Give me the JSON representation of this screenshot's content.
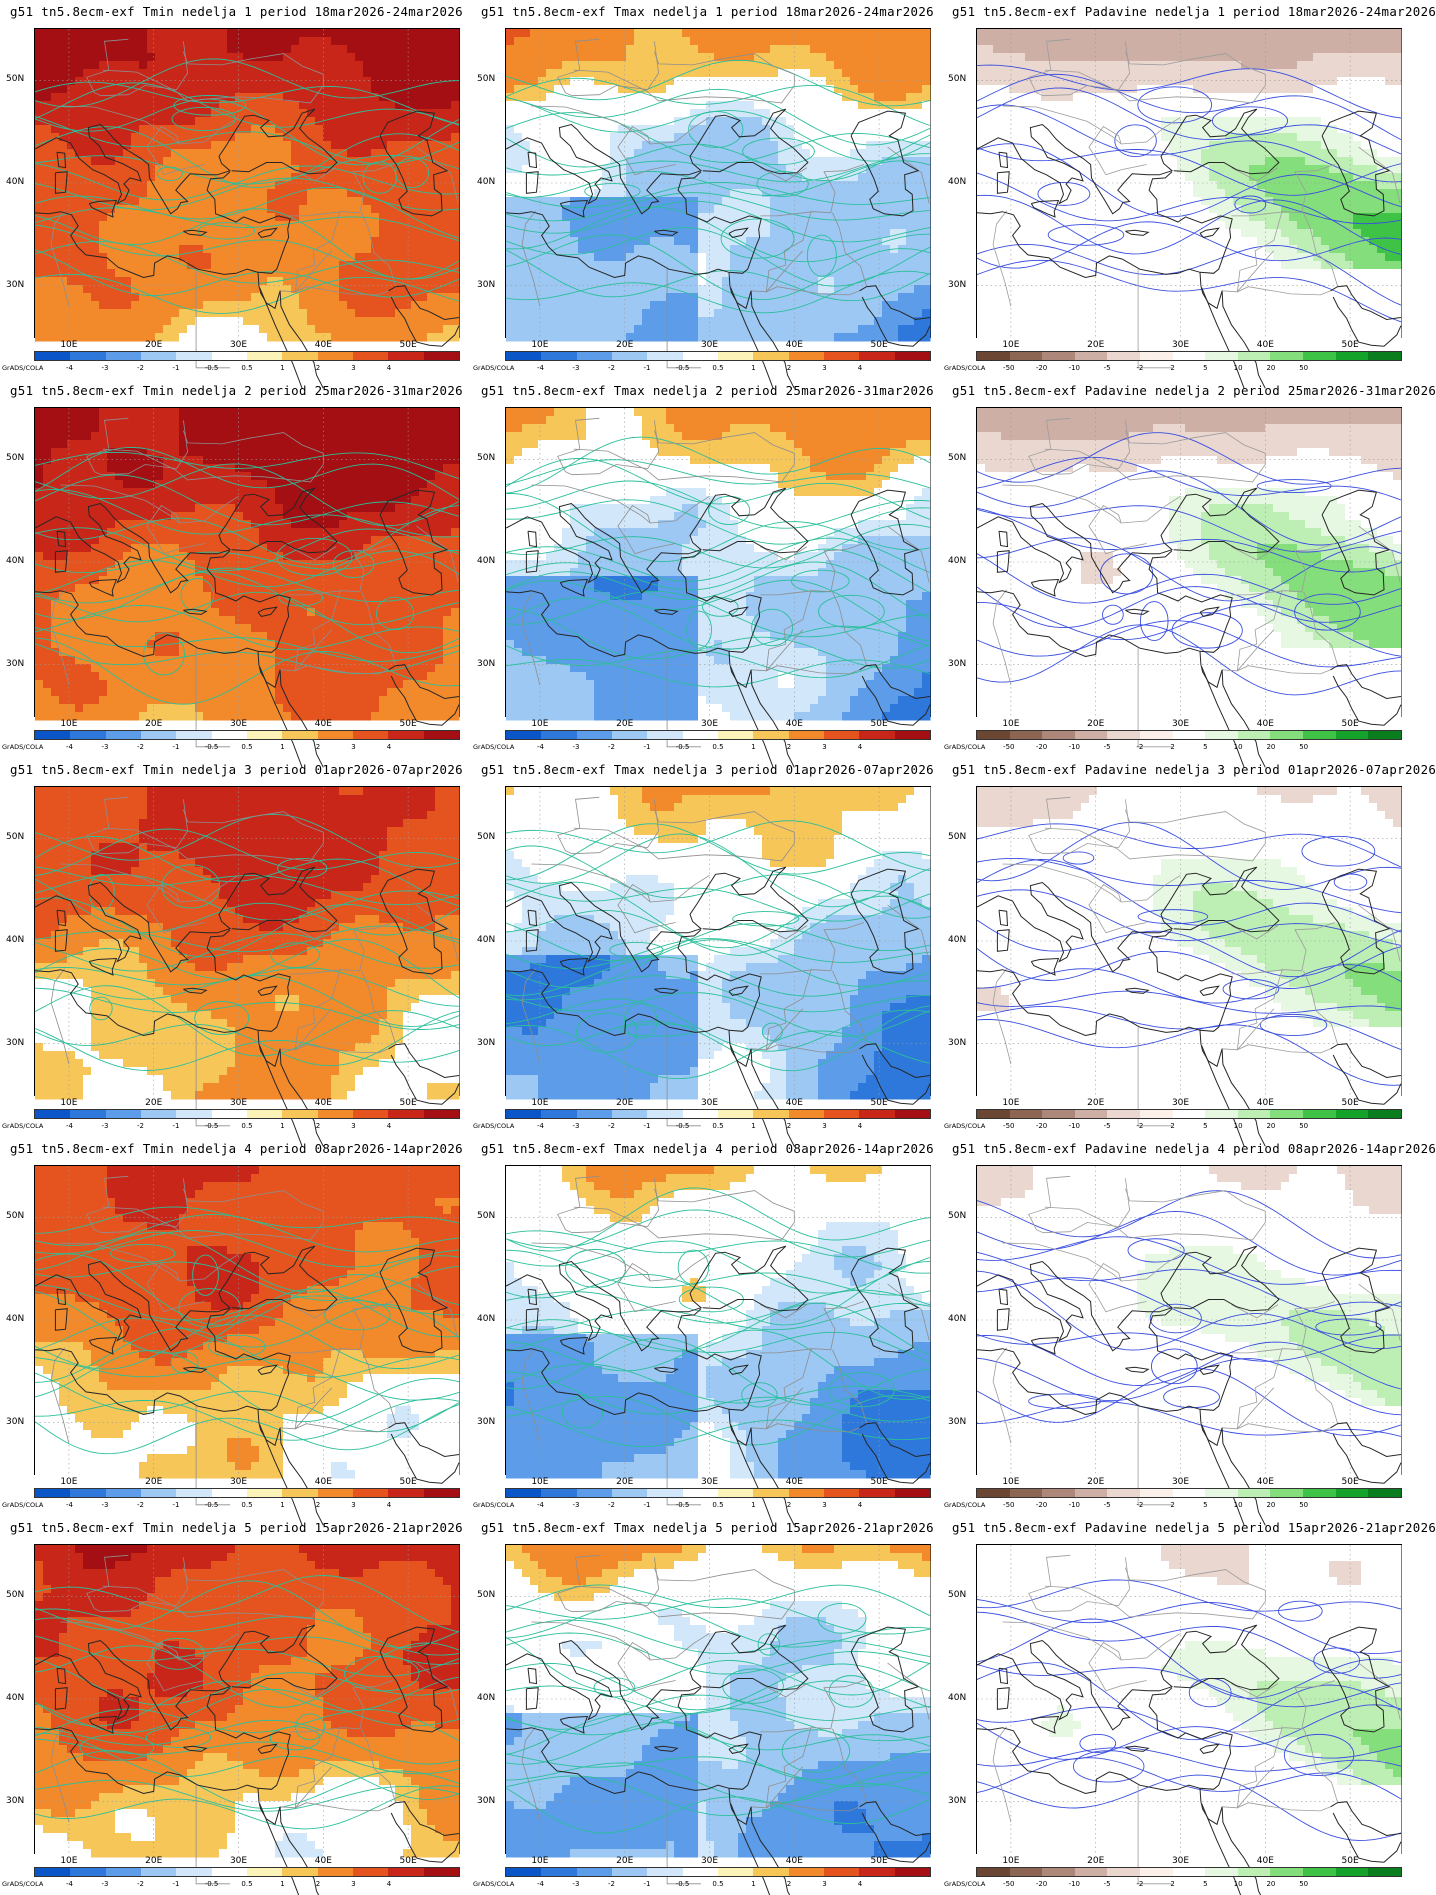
{
  "panels": [
    {
      "title": "g51 tn5.8ecm-exf Tmin nedelja 1 period 18mar2026-24mar2026",
      "variable": "Tmin",
      "scale": "temp",
      "week": 1,
      "intensity": 2.6,
      "contour_color": "#2bbf9a"
    },
    {
      "title": "g51 tn5.8ecm-exf Tmax nedelja 1 period 18mar2026-24mar2026",
      "variable": "Tmax",
      "scale": "temp",
      "week": 1,
      "intensity": -0.6,
      "contour_color": "#2bbf9a"
    },
    {
      "title": "g51 tn5.8ecm-exf Padavine nedelja 1 period 18mar2026-24mar2026",
      "variable": "Padavine",
      "scale": "precip",
      "week": 1,
      "intensity": 1.2,
      "contour_color": "#3a4ee0"
    },
    {
      "title": "g51 tn5.8ecm-exf Tmin nedelja 2 period 25mar2026-31mar2026",
      "variable": "Tmin",
      "scale": "temp",
      "week": 2,
      "intensity": 3.0,
      "contour_color": "#2bbf9a"
    },
    {
      "title": "g51 tn5.8ecm-exf Tmax nedelja 2 period 25mar2026-31mar2026",
      "variable": "Tmax",
      "scale": "temp",
      "week": 2,
      "intensity": -0.8,
      "contour_color": "#2bbf9a"
    },
    {
      "title": "g51 tn5.8ecm-exf Padavine nedelja 2 period 25mar2026-31mar2026",
      "variable": "Padavine",
      "scale": "precip",
      "week": 2,
      "intensity": 1.0,
      "contour_color": "#3a4ee0"
    },
    {
      "title": "g51 tn5.8ecm-exf Tmin nedelja 3 period 01apr2026-07apr2026",
      "variable": "Tmin",
      "scale": "temp",
      "week": 3,
      "intensity": 2.1,
      "contour_color": "#2bbf9a"
    },
    {
      "title": "g51 tn5.8ecm-exf Tmax nedelja 3 period 01apr2026-07apr2026",
      "variable": "Tmax",
      "scale": "temp",
      "week": 3,
      "intensity": -1.2,
      "contour_color": "#2bbf9a"
    },
    {
      "title": "g51 tn5.8ecm-exf Padavine nedelja 3 period 01apr2026-07apr2026",
      "variable": "Padavine",
      "scale": "precip",
      "week": 3,
      "intensity": 0.7,
      "contour_color": "#3a4ee0"
    },
    {
      "title": "g51 tn5.8ecm-exf Tmin nedelja 4 period 08apr2026-14apr2026",
      "variable": "Tmin",
      "scale": "temp",
      "week": 4,
      "intensity": 1.9,
      "contour_color": "#2bbf9a"
    },
    {
      "title": "g51 tn5.8ecm-exf Tmax nedelja 4 period 08apr2026-14apr2026",
      "variable": "Tmax",
      "scale": "temp",
      "week": 4,
      "intensity": -1.0,
      "contour_color": "#2bbf9a"
    },
    {
      "title": "g51 tn5.8ecm-exf Padavine nedelja 4 period 08apr2026-14apr2026",
      "variable": "Padavine",
      "scale": "precip",
      "week": 4,
      "intensity": 0.5,
      "contour_color": "#3a4ee0"
    },
    {
      "title": "g51 tn5.8ecm-exf Tmin nedelja 5 period 15apr2026-21apr2026",
      "variable": "Tmin",
      "scale": "temp",
      "week": 5,
      "intensity": 2.2,
      "contour_color": "#2bbf9a"
    },
    {
      "title": "g51 tn5.8ecm-exf Tmax nedelja 5 period 15apr2026-21apr2026",
      "variable": "Tmax",
      "scale": "temp",
      "week": 5,
      "intensity": -0.9,
      "contour_color": "#2bbf9a"
    },
    {
      "title": "g51 tn5.8ecm-exf Padavine nedelja 5 period 15apr2026-21apr2026",
      "variable": "Padavine",
      "scale": "precip",
      "week": 5,
      "intensity": 0.6,
      "contour_color": "#3a4ee0"
    }
  ],
  "axes": {
    "x_labels": [
      "10E",
      "20E",
      "30E",
      "40E",
      "50E"
    ],
    "x_values": [
      10,
      20,
      30,
      40,
      50
    ],
    "y_labels": [
      "50N",
      "40N",
      "30N"
    ],
    "y_values": [
      50,
      40,
      30
    ],
    "lon_range": [
      6,
      56
    ],
    "lat_range": [
      25,
      55
    ]
  },
  "scales": {
    "temp": {
      "colors": [
        "#0a55c8",
        "#2e78db",
        "#5c9ce8",
        "#9cc8f3",
        "#d2e8fa",
        "#ffffff",
        "#fbf3b8",
        "#f7c659",
        "#f28a2c",
        "#e5531e",
        "#c9261a",
        "#a30f12"
      ],
      "ticks": [
        "-4",
        "-3",
        "-2",
        "-1",
        "-0.5",
        "0.5",
        "1",
        "2",
        "3",
        "4"
      ]
    },
    "precip": {
      "colors": [
        "#6b4633",
        "#8d6553",
        "#ad887a",
        "#cdafa6",
        "#ead7cf",
        "#fbf0ea",
        "#ffffff",
        "#e6f8e2",
        "#bdeeb4",
        "#84de7b",
        "#3fc347",
        "#15a22a",
        "#0a7d1f"
      ],
      "ticks": [
        "-50",
        "-20",
        "-10",
        "-5",
        "-2",
        "2",
        "5",
        "10",
        "20",
        "50"
      ]
    }
  },
  "credit": "GrADS/COLA"
}
